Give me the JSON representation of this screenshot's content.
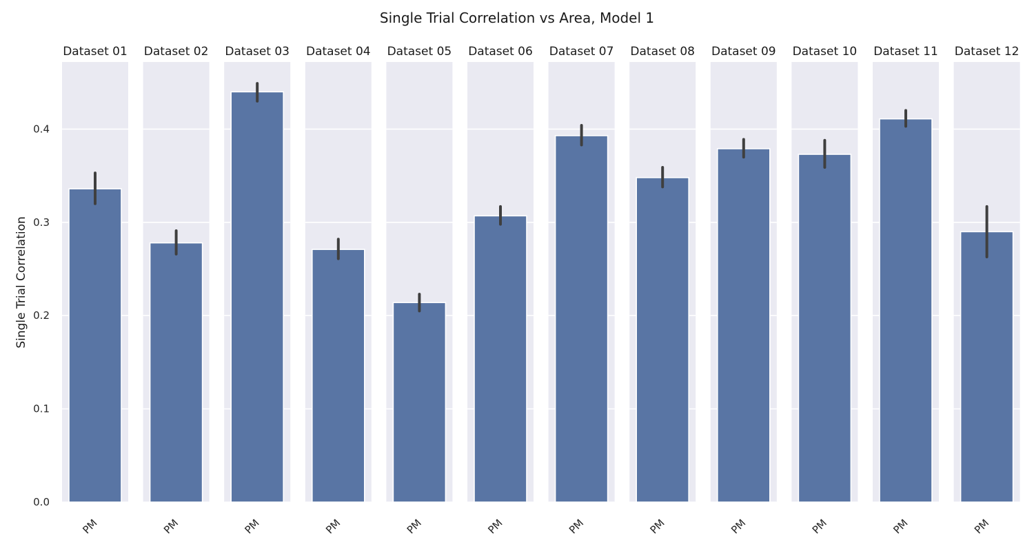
{
  "chart_data": {
    "type": "bar",
    "title": "Single Trial Correlation vs Area, Model 1",
    "ylabel": "Single Trial Correlation",
    "xlabel": "",
    "ylim": [
      0,
      0.472
    ],
    "yticks": [
      0.0,
      0.1,
      0.2,
      0.3,
      0.4
    ],
    "ytick_labels": [
      "0.0",
      "0.1",
      "0.2",
      "0.3",
      "0.4"
    ],
    "grid": true,
    "bar_color": "#5975a4",
    "errorbar_color": "#3f3f3f",
    "panel_background": "#eaeaf2",
    "grid_color": "#ffffff",
    "panels": [
      {
        "title": "Dataset 01",
        "category": "PM",
        "value": 0.336,
        "err_low": 0.32,
        "err_high": 0.353
      },
      {
        "title": "Dataset 02",
        "category": "PM",
        "value": 0.278,
        "err_low": 0.266,
        "err_high": 0.291
      },
      {
        "title": "Dataset 03",
        "category": "PM",
        "value": 0.44,
        "err_low": 0.43,
        "err_high": 0.449
      },
      {
        "title": "Dataset 04",
        "category": "PM",
        "value": 0.271,
        "err_low": 0.261,
        "err_high": 0.282
      },
      {
        "title": "Dataset 05",
        "category": "PM",
        "value": 0.214,
        "err_low": 0.205,
        "err_high": 0.223
      },
      {
        "title": "Dataset 06",
        "category": "PM",
        "value": 0.307,
        "err_low": 0.298,
        "err_high": 0.317
      },
      {
        "title": "Dataset 07",
        "category": "PM",
        "value": 0.393,
        "err_low": 0.383,
        "err_high": 0.404
      },
      {
        "title": "Dataset 08",
        "category": "PM",
        "value": 0.348,
        "err_low": 0.338,
        "err_high": 0.359
      },
      {
        "title": "Dataset 09",
        "category": "PM",
        "value": 0.379,
        "err_low": 0.37,
        "err_high": 0.389
      },
      {
        "title": "Dataset 10",
        "category": "PM",
        "value": 0.373,
        "err_low": 0.359,
        "err_high": 0.388
      },
      {
        "title": "Dataset 11",
        "category": "PM",
        "value": 0.411,
        "err_low": 0.403,
        "err_high": 0.42
      },
      {
        "title": "Dataset 12",
        "category": "PM",
        "value": 0.29,
        "err_low": 0.263,
        "err_high": 0.317
      }
    ]
  }
}
